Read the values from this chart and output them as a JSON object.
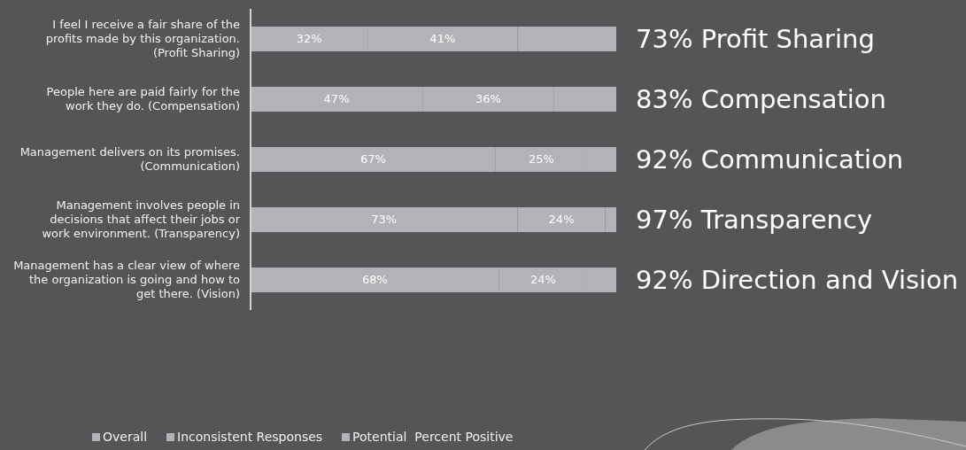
{
  "chart_data": {
    "type": "bar",
    "orientation": "horizontal",
    "stacked": true,
    "categories": [
      "I feel I receive a fair share of the profits made by this organization. (Profit Sharing)",
      "People here are paid fairly for the work they do. (Compensation)",
      "Management delivers on its promises. (Communication)",
      "Management involves people in decisions that affect their jobs or work environment. (Transparency)",
      "Management has a clear view of where the organization is going and how to get there. (Vision)"
    ],
    "series": [
      {
        "name": "Overall",
        "color": "#b1b3b6",
        "values": [
          32,
          47,
          67,
          73,
          68
        ],
        "value_labels": [
          "32%",
          "47%",
          "67%",
          "73%",
          "68%"
        ]
      },
      {
        "name": "Inconsistent Responses",
        "color": "#b1b3b6",
        "values": [
          41,
          36,
          25,
          24,
          24
        ],
        "value_labels": [
          "41%",
          "36%",
          "25%",
          "24%",
          "24%"
        ]
      },
      {
        "name": "Potential  Percent Positive",
        "color": "#b1b3b6",
        "values": [
          27,
          17,
          8,
          3,
          8
        ]
      }
    ],
    "xlim": [
      0,
      100
    ],
    "tick_labels": "y",
    "grid": false,
    "legend": "bottom left",
    "annotations": [
      "73% Profit Sharing",
      "83% Compensation",
      "92% Communication",
      "97% Transparency",
      "92% Direction and Vision"
    ]
  }
}
